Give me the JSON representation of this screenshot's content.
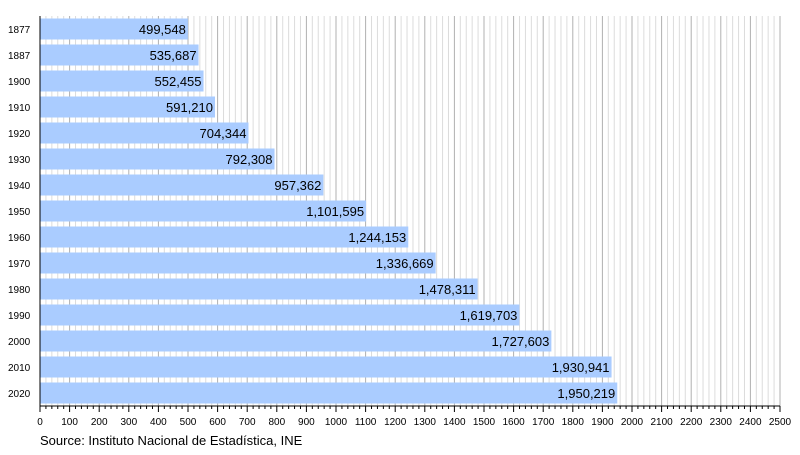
{
  "chart_data": {
    "type": "bar",
    "orientation": "horizontal",
    "categories": [
      "1877",
      "1887",
      "1900",
      "1910",
      "1920",
      "1930",
      "1940",
      "1950",
      "1960",
      "1970",
      "1980",
      "1990",
      "2000",
      "2010",
      "2020"
    ],
    "values": [
      499548,
      535687,
      552455,
      591210,
      704344,
      792308,
      957362,
      1101595,
      1244153,
      1336669,
      1478311,
      1619703,
      1727603,
      1930941,
      1950219
    ],
    "value_labels": [
      "499,548",
      "535,687",
      "552,455",
      "591,210",
      "704,344",
      "792,308",
      "957,362",
      "1,101,595",
      "1,244,153",
      "1,336,669",
      "1,478,311",
      "1,619,703",
      "1,727,603",
      "1,930,941",
      "1,950,219"
    ],
    "xlim": [
      0,
      2500
    ],
    "x_ticks": [
      "0",
      "100",
      "200",
      "300",
      "400",
      "500",
      "600",
      "700",
      "800",
      "900",
      "1000",
      "1100",
      "1200",
      "1300",
      "1400",
      "1500",
      "1600",
      "1700",
      "1800",
      "1900",
      "2000",
      "2100",
      "2200",
      "2300",
      "2400",
      "2500"
    ],
    "x_unit_divisor": 1000,
    "grid": true,
    "bar_color": "#aaccff",
    "source": "Source: Instituto Nacional de Estadística, INE"
  }
}
